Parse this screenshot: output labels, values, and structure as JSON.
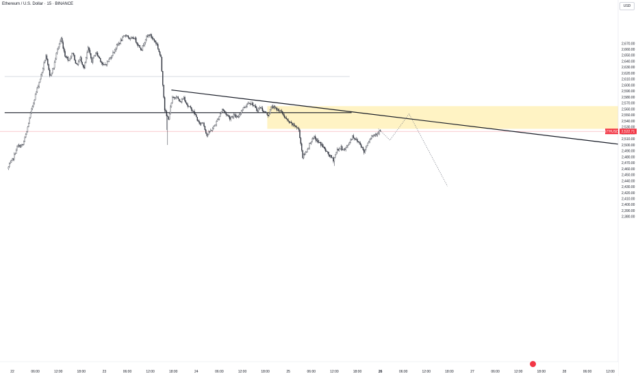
{
  "header": {
    "title": "Ethereum / U.S. Dollar · 15 · BINANCE",
    "currency": "USD"
  },
  "chart_data": {
    "type": "candlestick",
    "symbol": "ETHUSD",
    "interval": "15",
    "exchange": "BINANCE",
    "ylim": [
      2375,
      2680
    ],
    "y_ticks": [
      2380,
      2390,
      2400,
      2410,
      2420,
      2430,
      2440,
      2450,
      2460,
      2470,
      2480,
      2490,
      2500,
      2510,
      2520,
      2530,
      2540,
      2550,
      2560,
      2570,
      2580,
      2590,
      2600,
      2610,
      2620,
      2630,
      2640,
      2650,
      2660,
      2670
    ],
    "x_ticks": [
      {
        "label": "22",
        "t": 0,
        "bold": false
      },
      {
        "label": "06:00",
        "t": 6,
        "bold": false
      },
      {
        "label": "12:00",
        "t": 12,
        "bold": false
      },
      {
        "label": "18:00",
        "t": 18,
        "bold": false
      },
      {
        "label": "23",
        "t": 24,
        "bold": false
      },
      {
        "label": "06:00",
        "t": 30,
        "bold": false
      },
      {
        "label": "12:00",
        "t": 36,
        "bold": false
      },
      {
        "label": "18:00",
        "t": 42,
        "bold": false
      },
      {
        "label": "24",
        "t": 48,
        "bold": false
      },
      {
        "label": "06:00",
        "t": 54,
        "bold": false
      },
      {
        "label": "12:00",
        "t": 60,
        "bold": false
      },
      {
        "label": "18:00",
        "t": 66,
        "bold": false
      },
      {
        "label": "25",
        "t": 72,
        "bold": false
      },
      {
        "label": "06:00",
        "t": 78,
        "bold": false
      },
      {
        "label": "12:00",
        "t": 84,
        "bold": false
      },
      {
        "label": "18:00",
        "t": 90,
        "bold": false
      },
      {
        "label": "26",
        "t": 96,
        "bold": true
      },
      {
        "label": "06:00",
        "t": 102,
        "bold": false
      },
      {
        "label": "12:00",
        "t": 108,
        "bold": false
      },
      {
        "label": "18:00",
        "t": 114,
        "bold": false
      },
      {
        "label": "27",
        "t": 120,
        "bold": false
      },
      {
        "label": "06:00",
        "t": 126,
        "bold": false
      },
      {
        "label": "12:00",
        "t": 132,
        "bold": false
      },
      {
        "label": "18:00",
        "t": 138,
        "bold": false
      },
      {
        "label": "28",
        "t": 144,
        "bold": false
      },
      {
        "label": "06:00",
        "t": 150,
        "bold": false
      },
      {
        "label": "12:00",
        "t": 156,
        "bold": false
      }
    ],
    "ohlc_anchors": [
      [
        -1,
        2460
      ],
      [
        0.5,
        2478
      ],
      [
        1.5,
        2497
      ],
      [
        3,
        2500
      ],
      [
        4,
        2522
      ],
      [
        5,
        2552
      ],
      [
        6,
        2578
      ],
      [
        7,
        2600
      ],
      [
        8,
        2622
      ],
      [
        9,
        2650
      ],
      [
        10,
        2615
      ],
      [
        11,
        2630
      ],
      [
        12,
        2660
      ],
      [
        13,
        2678
      ],
      [
        14,
        2650
      ],
      [
        15,
        2642
      ],
      [
        16,
        2655
      ],
      [
        17,
        2633
      ],
      [
        18,
        2645
      ],
      [
        19,
        2628
      ],
      [
        20,
        2662
      ],
      [
        21,
        2640
      ],
      [
        22,
        2655
      ],
      [
        23,
        2645
      ],
      [
        24,
        2632
      ],
      [
        25,
        2638
      ],
      [
        26,
        2648
      ],
      [
        27,
        2660
      ],
      [
        28,
        2670
      ],
      [
        29,
        2678
      ],
      [
        30,
        2685
      ],
      [
        31,
        2676
      ],
      [
        32,
        2680
      ],
      [
        33,
        2668
      ],
      [
        34,
        2660
      ],
      [
        35,
        2678
      ],
      [
        36,
        2685
      ],
      [
        37,
        2677
      ],
      [
        38,
        2668
      ],
      [
        39,
        2645
      ],
      [
        40,
        2560
      ],
      [
        40.5,
        2548
      ],
      [
        41,
        2545
      ],
      [
        42,
        2578
      ],
      [
        43,
        2582
      ],
      [
        44,
        2571
      ],
      [
        45,
        2580
      ],
      [
        46,
        2565
      ],
      [
        47,
        2560
      ],
      [
        48,
        2550
      ],
      [
        49,
        2535
      ],
      [
        50,
        2538
      ],
      [
        51,
        2516
      ],
      [
        52,
        2524
      ],
      [
        53,
        2532
      ],
      [
        54,
        2545
      ],
      [
        55,
        2560
      ],
      [
        56,
        2552
      ],
      [
        57,
        2545
      ],
      [
        58,
        2550
      ],
      [
        59,
        2545
      ],
      [
        60,
        2558
      ],
      [
        61,
        2565
      ],
      [
        62,
        2572
      ],
      [
        63,
        2568
      ],
      [
        64,
        2558
      ],
      [
        65,
        2563
      ],
      [
        66,
        2555
      ],
      [
        67,
        2550
      ],
      [
        68,
        2565
      ],
      [
        69,
        2560
      ],
      [
        70,
        2558
      ],
      [
        71,
        2550
      ],
      [
        72,
        2540
      ],
      [
        73,
        2535
      ],
      [
        74,
        2532
      ],
      [
        75,
        2525
      ],
      [
        76,
        2480
      ],
      [
        77,
        2490
      ],
      [
        78,
        2505
      ],
      [
        79,
        2512
      ],
      [
        80,
        2505
      ],
      [
        81,
        2500
      ],
      [
        82,
        2490
      ],
      [
        83,
        2482
      ],
      [
        84,
        2475
      ],
      [
        85,
        2492
      ],
      [
        86,
        2495
      ],
      [
        87,
        2492
      ],
      [
        88,
        2502
      ],
      [
        89,
        2515
      ],
      [
        90,
        2508
      ],
      [
        91,
        2502
      ],
      [
        92,
        2488
      ],
      [
        93,
        2505
      ],
      [
        94,
        2515
      ],
      [
        95,
        2518
      ],
      [
        96,
        2523
      ]
    ],
    "resistance_trendline": {
      "from": {
        "t": 41.5,
        "p": 2592
      },
      "to": {
        "t": 158.5,
        "p": 2501
      }
    },
    "horizontal_levels": [
      {
        "p": 2614.5,
        "t_start": -2,
        "t_end": 88,
        "color": "#d1d4dc"
      },
      {
        "p": 2554,
        "t_start": -2,
        "t_end": 88.5,
        "color": "#131722"
      }
    ],
    "supply_zone": {
      "t_start": 66.5,
      "t_end": 162,
      "p_top": 2565,
      "p_bottom": 2527,
      "color": "#fff3c4"
    },
    "projection_path": [
      {
        "t": 95.5,
        "p": 2527
      },
      {
        "t": 98.5,
        "p": 2508
      },
      {
        "t": 103.5,
        "p": 2552
      },
      {
        "t": 113.5,
        "p": 2431
      }
    ],
    "last_price": {
      "label": "ETHUSD",
      "value": "2,522.71",
      "p": 2522.71,
      "color": "#f23645"
    }
  },
  "icons": {
    "event_badge": "economic-event-icon"
  }
}
